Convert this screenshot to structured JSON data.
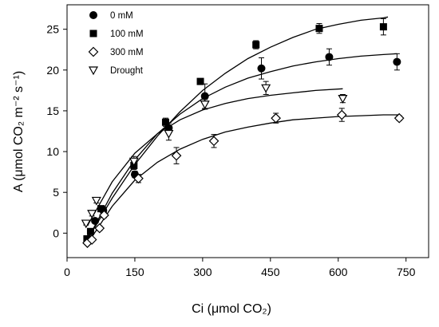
{
  "chart_data": {
    "type": "scatter",
    "title": "",
    "xlabel": "Ci (μmol CO₂)",
    "ylabel": "A (μmol CO₂ m⁻² s⁻¹)",
    "xlim": [
      0,
      800
    ],
    "ylim": [
      -3,
      28
    ],
    "x_ticks": [
      0,
      150,
      300,
      450,
      600,
      750
    ],
    "y_ticks": [
      0,
      5,
      10,
      15,
      20,
      25
    ],
    "grid": false,
    "legend_position": "top-left",
    "series": [
      {
        "name": "0 mM",
        "marker": "filled-circle",
        "points": [
          [
            48,
            -0.7
          ],
          [
            62,
            1.5
          ],
          [
            80,
            2.8
          ],
          [
            150,
            7.2
          ],
          [
            225,
            12.9
          ],
          [
            305,
            16.8
          ],
          [
            430,
            20.2
          ],
          [
            580,
            21.6
          ],
          [
            730,
            21.0
          ]
        ],
        "errors": [
          0.3,
          0.3,
          0.4,
          0.4,
          0.6,
          1.5,
          1.3,
          1.0,
          1.0
        ],
        "fit": [
          [
            45,
            -0.8
          ],
          [
            100,
            4.9
          ],
          [
            150,
            9.0
          ],
          [
            200,
            12.2
          ],
          [
            250,
            14.6
          ],
          [
            300,
            16.5
          ],
          [
            350,
            17.9
          ],
          [
            400,
            19.0
          ],
          [
            450,
            19.8
          ],
          [
            500,
            20.5
          ],
          [
            550,
            21.0
          ],
          [
            600,
            21.4
          ],
          [
            650,
            21.7
          ],
          [
            700,
            21.9
          ],
          [
            730,
            22.0
          ]
        ]
      },
      {
        "name": "100 mM",
        "marker": "filled-square",
        "points": [
          [
            44,
            -0.7
          ],
          [
            52,
            0.2
          ],
          [
            75,
            3.0
          ],
          [
            148,
            8.3
          ],
          [
            218,
            13.6
          ],
          [
            295,
            18.6
          ],
          [
            418,
            23.1
          ],
          [
            558,
            25.1
          ],
          [
            700,
            25.3
          ]
        ],
        "errors": [
          0.2,
          0.3,
          0.3,
          0.5,
          0.5,
          0.3,
          0.5,
          0.6,
          1.0
        ],
        "fit": [
          [
            45,
            -0.8
          ],
          [
            100,
            4.3
          ],
          [
            150,
            8.4
          ],
          [
            200,
            11.9
          ],
          [
            250,
            14.9
          ],
          [
            300,
            17.5
          ],
          [
            350,
            19.6
          ],
          [
            400,
            21.4
          ],
          [
            450,
            22.8
          ],
          [
            500,
            24.0
          ],
          [
            550,
            25.0
          ],
          [
            600,
            25.6
          ],
          [
            650,
            26.1
          ],
          [
            700,
            26.4
          ],
          [
            710,
            26.5
          ]
        ]
      },
      {
        "name": "300 mM",
        "marker": "open-diamond",
        "points": [
          [
            45,
            -1.2
          ],
          [
            55,
            -0.8
          ],
          [
            72,
            0.6
          ],
          [
            82,
            2.2
          ],
          [
            158,
            6.7
          ],
          [
            242,
            9.5
          ],
          [
            325,
            11.3
          ],
          [
            462,
            14.1
          ],
          [
            608,
            14.5
          ],
          [
            735,
            14.1
          ]
        ],
        "errors": [
          0.2,
          0.2,
          0.3,
          0.3,
          0.5,
          1.0,
          0.8,
          0.6,
          0.8,
          0.3
        ],
        "fit": [
          [
            45,
            -1.3
          ],
          [
            100,
            3.3
          ],
          [
            150,
            6.5
          ],
          [
            200,
            8.7
          ],
          [
            250,
            10.3
          ],
          [
            300,
            11.5
          ],
          [
            350,
            12.4
          ],
          [
            400,
            13.0
          ],
          [
            450,
            13.5
          ],
          [
            500,
            13.9
          ],
          [
            550,
            14.1
          ],
          [
            600,
            14.3
          ],
          [
            650,
            14.4
          ],
          [
            700,
            14.5
          ],
          [
            735,
            14.5
          ]
        ]
      },
      {
        "name": "Drought",
        "marker": "open-triangle-down",
        "points": [
          [
            42,
            1.2
          ],
          [
            55,
            2.4
          ],
          [
            65,
            4.0
          ],
          [
            148,
            8.8
          ],
          [
            225,
            12.2
          ],
          [
            305,
            15.8
          ],
          [
            440,
            17.8
          ],
          [
            610,
            16.5
          ]
        ],
        "errors": [
          0.2,
          0.3,
          0.3,
          0.6,
          0.8,
          0.6,
          0.8,
          0.5
        ],
        "fit": [
          [
            45,
            0.9
          ],
          [
            100,
            6.3
          ],
          [
            150,
            9.8
          ],
          [
            200,
            12.2
          ],
          [
            250,
            13.9
          ],
          [
            300,
            15.1
          ],
          [
            350,
            15.9
          ],
          [
            400,
            16.5
          ],
          [
            450,
            16.9
          ],
          [
            500,
            17.2
          ],
          [
            550,
            17.5
          ],
          [
            610,
            17.7
          ]
        ]
      }
    ]
  }
}
